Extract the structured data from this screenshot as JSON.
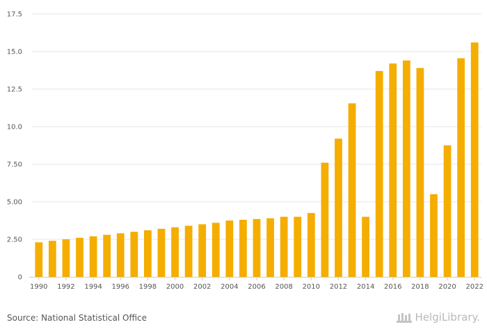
{
  "chart_data": {
    "type": "bar",
    "x": [
      1990,
      1991,
      1992,
      1993,
      1994,
      1995,
      1996,
      1997,
      1998,
      1999,
      2000,
      2001,
      2002,
      2003,
      2004,
      2005,
      2006,
      2007,
      2008,
      2009,
      2010,
      2011,
      2012,
      2013,
      2014,
      2015,
      2016,
      2017,
      2018,
      2019,
      2020,
      2021,
      2022
    ],
    "x_tick_labels": [
      "1990",
      "1992",
      "1994",
      "1996",
      "1998",
      "2000",
      "2002",
      "2004",
      "2006",
      "2008",
      "2010",
      "2012",
      "2014",
      "2016",
      "2018",
      "2020",
      "2022"
    ],
    "values": [
      2.3,
      2.4,
      2.5,
      2.6,
      2.7,
      2.8,
      2.9,
      3.0,
      3.1,
      3.2,
      3.3,
      3.4,
      3.5,
      3.6,
      3.75,
      3.8,
      3.85,
      3.9,
      4.0,
      4.0,
      4.25,
      7.6,
      9.2,
      11.55,
      4.0,
      13.7,
      14.2,
      14.4,
      13.9,
      5.5,
      8.75,
      14.55,
      15.6
    ],
    "y_ticks": [
      "0",
      "2.50",
      "5.00",
      "7.50",
      "10.0",
      "12.5",
      "15.0",
      "17.5"
    ],
    "ylim": [
      0,
      17.5
    ],
    "grid": true,
    "bar_color": "#f5ad00",
    "title": "",
    "xlabel": "",
    "ylabel": ""
  },
  "footer": {
    "source": "Source: National Statistical Office",
    "logo_text": "HelgiLibrary."
  }
}
